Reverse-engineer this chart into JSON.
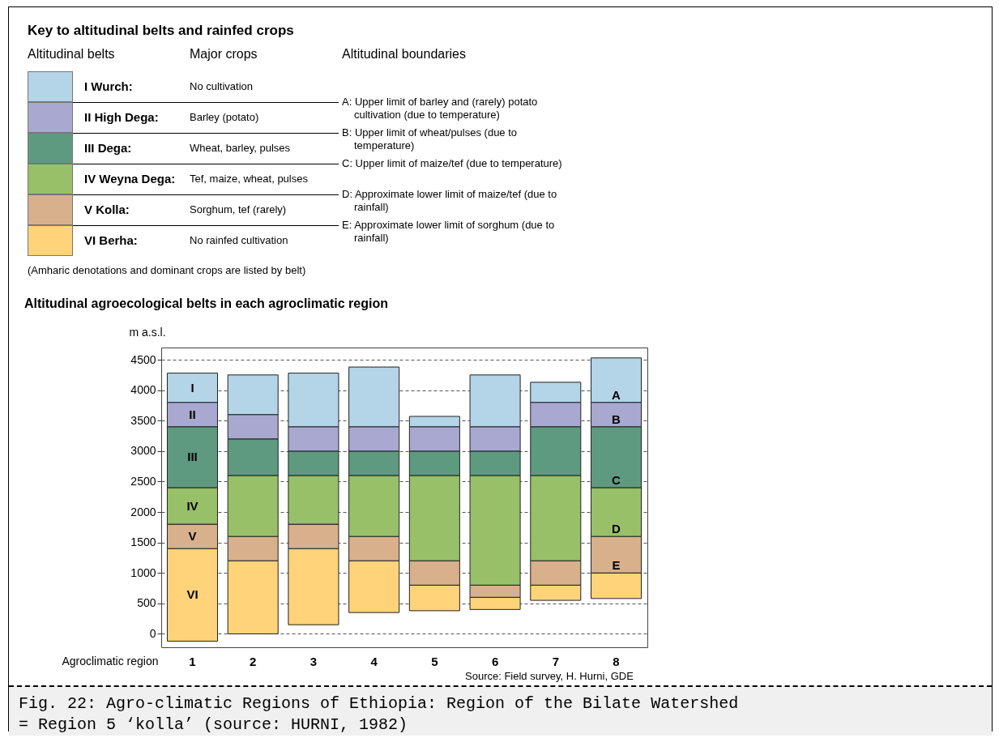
{
  "chart_data": [
    {
      "type": "other",
      "title": "Key to altitudinal belts and rainfed crops",
      "annotations": [
        "Altitudinal belts",
        "Major crops",
        "Altitudinal boundaries",
        "I Wurch:",
        "No cultivation",
        "II High Dega:",
        "Barley (potato)",
        "III Dega:",
        "Wheat, barley, pulses",
        "IV Weyna Dega:",
        "Tef, maize, wheat, pulses",
        "V Kolla:",
        "Sorghum, tef (rarely)",
        "VI Berha:",
        "No rainfed cultivation",
        "A: Upper limit of barley and (rarely) potato cultivation (due to temperature)",
        "B: Upper limit of wheat/pulses (due to temperature)",
        "C: Upper limit of maize/tef (due to temperature)",
        "D: Approximate lower limit of maize/tef (due to rainfall)",
        "E: Approximate lower limit of sorghum (due to rainfall)",
        "(Amharic denotations and dominant crops are listed by belt)"
      ]
    },
    {
      "type": "bar",
      "title": "Altitudinal agroecological belts in each agroclimatic region",
      "ylabel": "m a.s.l.",
      "xlabel": "Agroclimatic region",
      "categories": [
        "1",
        "2",
        "3",
        "4",
        "5",
        "6",
        "7",
        "8"
      ],
      "ylim": [
        -220,
        4700
      ],
      "yticks": [
        0,
        500,
        1000,
        1500,
        2000,
        2500,
        3000,
        3500,
        4000,
        4500
      ],
      "grid": "y",
      "line_style": "dashed",
      "legend": false,
      "series": [
        {
          "name": "VI",
          "color": "#ffd37a",
          "base": [
            -120,
            0,
            150,
            350,
            380,
            400,
            550,
            580
          ],
          "values": [
            1520,
            1200,
            1250,
            850,
            420,
            200,
            250,
            420
          ]
        },
        {
          "name": "V",
          "color": "#d8b08c",
          "base": [
            1400,
            1200,
            1400,
            1200,
            800,
            600,
            800,
            1000
          ],
          "values": [
            400,
            400,
            400,
            400,
            400,
            200,
            400,
            600
          ]
        },
        {
          "name": "IV",
          "color": "#98c068",
          "base": [
            1800,
            1600,
            1800,
            1600,
            1200,
            800,
            1200,
            1600
          ],
          "values": [
            600,
            1000,
            800,
            1000,
            1400,
            1800,
            1400,
            800
          ]
        },
        {
          "name": "III",
          "color": "#5e9a80",
          "base": [
            2400,
            2600,
            2600,
            2600,
            2600,
            2600,
            2600,
            2400
          ],
          "values": [
            1000,
            600,
            400,
            400,
            400,
            400,
            800,
            1000
          ]
        },
        {
          "name": "II",
          "color": "#a8a8d0",
          "base": [
            3400,
            3200,
            3000,
            3000,
            3000,
            3000,
            3400,
            3400
          ],
          "values": [
            400,
            400,
            400,
            400,
            400,
            400,
            400,
            400
          ]
        },
        {
          "name": "I",
          "color": "#b4d4e8",
          "base": [
            3800,
            3600,
            3400,
            3400,
            3400,
            3400,
            3800,
            3800
          ],
          "values": [
            480,
            650,
            880,
            980,
            170,
            850,
            330,
            730
          ]
        }
      ],
      "annotations": [
        "A",
        "B",
        "C",
        "D",
        "E",
        "Source: Field survey, H. Hurni, GDE",
        "Fig. 22:   Agro-climatic Regions of Ethiopia: Region of the Bilate Watershed = Region 5 ‘kolla’ (source: HURNI, 1982)"
      ]
    }
  ]
}
